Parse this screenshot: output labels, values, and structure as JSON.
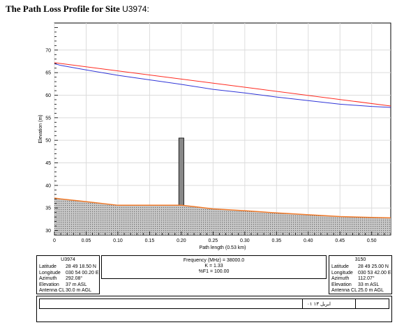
{
  "page_title": {
    "prefix": "The Path Loss Profile for Site ",
    "site": "U3974:"
  },
  "chart_data": {
    "type": "line",
    "title": "",
    "xlabel": "Path length (0.53 km)",
    "ylabel": "Elevation (m)",
    "xlim": [
      0,
      0.53
    ],
    "ylim": [
      29,
      76
    ],
    "x_ticks": [
      0,
      0.05,
      0.1,
      0.15,
      0.2,
      0.25,
      0.3,
      0.35,
      0.4,
      0.45,
      0.5
    ],
    "x_tick_labels": [
      "0",
      "0.05",
      "0.10",
      "0.15",
      "0.20",
      "0.25",
      "0.30",
      "0.35",
      "0.40",
      "0.45",
      "0.50"
    ],
    "y_ticks": [
      30,
      35,
      40,
      45,
      50,
      55,
      60,
      65,
      70
    ],
    "y_tick_labels": [
      "30",
      "35",
      "40",
      "45",
      "50",
      "55",
      "60",
      "65",
      "70"
    ],
    "grid": true,
    "series": [
      {
        "color": "#ff2a1f",
        "x": [
          0,
          0.53
        ],
        "y": [
          67.2,
          57.6
        ]
      },
      {
        "color": "#2f35d8",
        "x": [
          0,
          0.01,
          0.05,
          0.1,
          0.15,
          0.2,
          0.25,
          0.3,
          0.35,
          0.4,
          0.45,
          0.5,
          0.53
        ],
        "y": [
          67.0,
          66.6,
          65.6,
          64.4,
          63.4,
          62.4,
          61.3,
          60.5,
          59.6,
          58.8,
          58.0,
          57.5,
          57.3
        ]
      },
      {
        "color": "#f07a2a",
        "x": [
          0,
          0.01,
          0.05,
          0.1,
          0.15,
          0.2,
          0.22,
          0.25,
          0.3,
          0.35,
          0.4,
          0.45,
          0.5,
          0.53
        ],
        "y": [
          37.2,
          37.0,
          36.4,
          35.6,
          35.6,
          35.6,
          35.3,
          34.8,
          34.4,
          33.9,
          33.5,
          33.1,
          32.9,
          32.8
        ]
      }
    ],
    "obstacle": {
      "x": 0.2,
      "width": 0.008,
      "base": 35.6,
      "top": 50.5,
      "color": "#888888"
    },
    "colors": {
      "terrain_fill": "#c9c9c9",
      "terrain_pattern": "#6b6b6b",
      "axis": "#000000",
      "grid": "#dcdcdc"
    }
  },
  "left_site": {
    "name": "U3974",
    "rows": [
      {
        "key": "Latitude",
        "value": "28 49 18.50 N"
      },
      {
        "key": "Longitude",
        "value": "030 54 00.20 E"
      },
      {
        "key": "Azimuth",
        "value": "292.08°"
      },
      {
        "key": "Elevation",
        "value": "37 m ASL"
      },
      {
        "key": "Antenna CL",
        "value": "30.0 m AGL"
      }
    ]
  },
  "right_site": {
    "name": "3150",
    "rows": [
      {
        "key": "Latitude",
        "value": "28 49 25.00 N"
      },
      {
        "key": "Longitude",
        "value": "030 53 42.00 E"
      },
      {
        "key": "Azimuth",
        "value": "112.07°"
      },
      {
        "key": "Elevation",
        "value": "33 m ASL"
      },
      {
        "key": "Antenna CL",
        "value": "25.0 m AGL"
      }
    ]
  },
  "center_info": {
    "frequency": "Frequency (MHz) = 38000.0",
    "k": "K = 1.33",
    "f1": "%F1 = 100.00"
  },
  "footer": {
    "date_text": "ابريل ١٣ ٠١"
  }
}
